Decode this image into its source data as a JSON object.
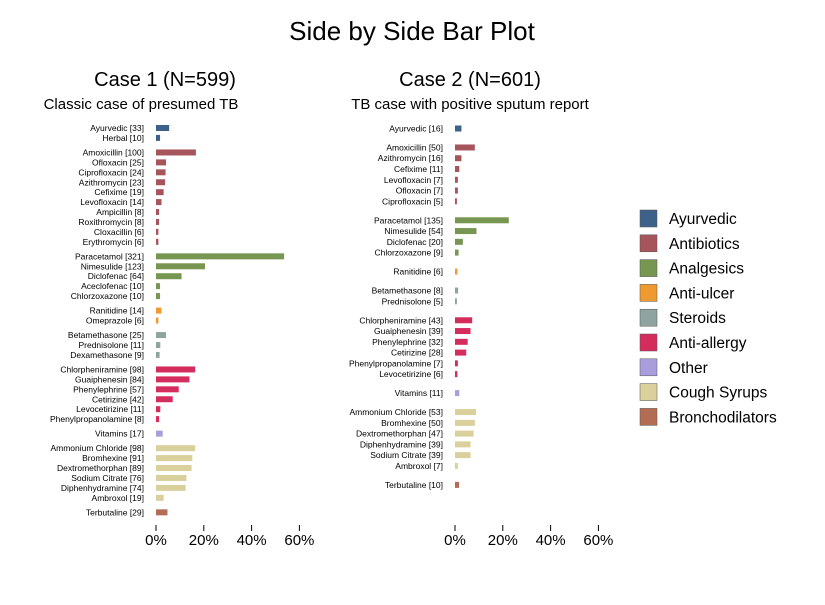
{
  "chart_data": {
    "type": "bar",
    "title": "Side by Side Bar Plot",
    "x_ticks": [
      "0%",
      "20%",
      "40%",
      "60%"
    ],
    "xlim": [
      0,
      60
    ],
    "grid": false,
    "legend_position": "right",
    "legend": [
      {
        "name": "Ayurvedic",
        "color": "#3e6189"
      },
      {
        "name": "Antibiotics",
        "color": "#a5555b"
      },
      {
        "name": "Analgesics",
        "color": "#779651"
      },
      {
        "name": "Anti-ulcer",
        "color": "#ef9a31"
      },
      {
        "name": "Steroids",
        "color": "#8fa4a0"
      },
      {
        "name": "Anti-allergy",
        "color": "#d52c5e"
      },
      {
        "name": "Other",
        "color": "#a99edb"
      },
      {
        "name": "Cough Syrups",
        "color": "#d9d09b"
      },
      {
        "name": "Bronchodilators",
        "color": "#b46d55"
      }
    ],
    "panels": [
      {
        "title": "Case 1 (N=599)",
        "subtitle": "Classic case of presumed TB",
        "n": 599,
        "groups": [
          {
            "group": "Ayurvedic",
            "items": [
              {
                "label": "Ayurvedic [33]",
                "count": 33,
                "percent": 5.5
              },
              {
                "label": "Herbal [10]",
                "count": 10,
                "percent": 1.7
              }
            ]
          },
          {
            "group": "Antibiotics",
            "items": [
              {
                "label": "Amoxicillin [100]",
                "count": 100,
                "percent": 16.7
              },
              {
                "label": "Ofloxacin [25]",
                "count": 25,
                "percent": 4.2
              },
              {
                "label": "Ciprofloxacin [24]",
                "count": 24,
                "percent": 4.0
              },
              {
                "label": "Azithromycin [23]",
                "count": 23,
                "percent": 3.8
              },
              {
                "label": "Cefixime [19]",
                "count": 19,
                "percent": 3.2
              },
              {
                "label": "Levofloxacin [14]",
                "count": 14,
                "percent": 2.3
              },
              {
                "label": "Ampicillin [8]",
                "count": 8,
                "percent": 1.3
              },
              {
                "label": "Roxithromycin [8]",
                "count": 8,
                "percent": 1.3
              },
              {
                "label": "Cloxacillin [6]",
                "count": 6,
                "percent": 1.0
              },
              {
                "label": "Erythromycin [6]",
                "count": 6,
                "percent": 1.0
              }
            ]
          },
          {
            "group": "Analgesics",
            "items": [
              {
                "label": "Paracetamol [321]",
                "count": 321,
                "percent": 53.6
              },
              {
                "label": "Nimesulide [123]",
                "count": 123,
                "percent": 20.5
              },
              {
                "label": "Diclofenac [64]",
                "count": 64,
                "percent": 10.7
              },
              {
                "label": "Aceclofenac [10]",
                "count": 10,
                "percent": 1.7
              },
              {
                "label": "Chlorzoxazone [10]",
                "count": 10,
                "percent": 1.7
              }
            ]
          },
          {
            "group": "Anti-ulcer",
            "items": [
              {
                "label": "Ranitidine [14]",
                "count": 14,
                "percent": 2.3
              },
              {
                "label": "Omeprazole [6]",
                "count": 6,
                "percent": 1.0
              }
            ]
          },
          {
            "group": "Steroids",
            "items": [
              {
                "label": "Betamethasone [25]",
                "count": 25,
                "percent": 4.2
              },
              {
                "label": "Prednisolone [11]",
                "count": 11,
                "percent": 1.8
              },
              {
                "label": "Dexamethasone [9]",
                "count": 9,
                "percent": 1.5
              }
            ]
          },
          {
            "group": "Anti-allergy",
            "items": [
              {
                "label": "Chlorpheniramine [98]",
                "count": 98,
                "percent": 16.4
              },
              {
                "label": "Guaiphenesin [84]",
                "count": 84,
                "percent": 14.0
              },
              {
                "label": "Phenylephrine [57]",
                "count": 57,
                "percent": 9.5
              },
              {
                "label": "Cetirizine [42]",
                "count": 42,
                "percent": 7.0
              },
              {
                "label": "Levocetirizine [11]",
                "count": 11,
                "percent": 1.8
              },
              {
                "label": "Phenylpropanolamine [8]",
                "count": 8,
                "percent": 1.3
              }
            ]
          },
          {
            "group": "Other",
            "items": [
              {
                "label": "Vitamins [17]",
                "count": 17,
                "percent": 2.8
              }
            ]
          },
          {
            "group": "Cough Syrups",
            "items": [
              {
                "label": "Ammonium Chloride [98]",
                "count": 98,
                "percent": 16.4
              },
              {
                "label": "Bromhexine [91]",
                "count": 91,
                "percent": 15.2
              },
              {
                "label": "Dextromethorphan [89]",
                "count": 89,
                "percent": 14.9
              },
              {
                "label": "Sodium Citrate [76]",
                "count": 76,
                "percent": 12.7
              },
              {
                "label": "Diphenhydramine [74]",
                "count": 74,
                "percent": 12.4
              },
              {
                "label": "Ambroxol [19]",
                "count": 19,
                "percent": 3.2
              }
            ]
          },
          {
            "group": "Bronchodilators",
            "items": [
              {
                "label": "Terbutaline [29]",
                "count": 29,
                "percent": 4.8
              }
            ]
          }
        ]
      },
      {
        "title": "Case 2 (N=601)",
        "subtitle": "TB case with positive sputum report",
        "n": 601,
        "groups": [
          {
            "group": "Ayurvedic",
            "items": [
              {
                "label": "Ayurvedic [16]",
                "count": 16,
                "percent": 2.7
              }
            ]
          },
          {
            "group": "Antibiotics",
            "items": [
              {
                "label": "Amoxicillin [50]",
                "count": 50,
                "percent": 8.3
              },
              {
                "label": "Azithromycin [16]",
                "count": 16,
                "percent": 2.7
              },
              {
                "label": "Cefixime [11]",
                "count": 11,
                "percent": 1.8
              },
              {
                "label": "Levofloxacin [7]",
                "count": 7,
                "percent": 1.2
              },
              {
                "label": "Ofloxacin [7]",
                "count": 7,
                "percent": 1.2
              },
              {
                "label": "Ciprofloxacin [5]",
                "count": 5,
                "percent": 0.8
              }
            ]
          },
          {
            "group": "Analgesics",
            "items": [
              {
                "label": "Paracetamol [135]",
                "count": 135,
                "percent": 22.5
              },
              {
                "label": "Nimesulide [54]",
                "count": 54,
                "percent": 9.0
              },
              {
                "label": "Diclofenac [20]",
                "count": 20,
                "percent": 3.3
              },
              {
                "label": "Chlorzoxazone [9]",
                "count": 9,
                "percent": 1.5
              }
            ]
          },
          {
            "group": "Anti-ulcer",
            "items": [
              {
                "label": "Ranitidine [6]",
                "count": 6,
                "percent": 1.0
              }
            ]
          },
          {
            "group": "Steroids",
            "items": [
              {
                "label": "Betamethasone [8]",
                "count": 8,
                "percent": 1.3
              },
              {
                "label": "Prednisolone [5]",
                "count": 5,
                "percent": 0.8
              }
            ]
          },
          {
            "group": "Anti-allergy",
            "items": [
              {
                "label": "Chlorpheniramine [43]",
                "count": 43,
                "percent": 7.2
              },
              {
                "label": "Guaiphenesin [39]",
                "count": 39,
                "percent": 6.5
              },
              {
                "label": "Phenylephrine [32]",
                "count": 32,
                "percent": 5.3
              },
              {
                "label": "Cetirizine [28]",
                "count": 28,
                "percent": 4.7
              },
              {
                "label": "Phenylpropanolamine [7]",
                "count": 7,
                "percent": 1.2
              },
              {
                "label": "Levocetirizine [6]",
                "count": 6,
                "percent": 1.0
              }
            ]
          },
          {
            "group": "Other",
            "items": [
              {
                "label": "Vitamins [11]",
                "count": 11,
                "percent": 1.8
              }
            ]
          },
          {
            "group": "Cough Syrups",
            "items": [
              {
                "label": "Ammonium Chloride [53]",
                "count": 53,
                "percent": 8.8
              },
              {
                "label": "Bromhexine [50]",
                "count": 50,
                "percent": 8.3
              },
              {
                "label": "Dextromethorphan [47]",
                "count": 47,
                "percent": 7.8
              },
              {
                "label": "Diphenhydramine [39]",
                "count": 39,
                "percent": 6.5
              },
              {
                "label": "Sodium Citrate [39]",
                "count": 39,
                "percent": 6.5
              },
              {
                "label": "Ambroxol [7]",
                "count": 7,
                "percent": 1.2
              }
            ]
          },
          {
            "group": "Bronchodilators",
            "items": [
              {
                "label": "Terbutaline [10]",
                "count": 10,
                "percent": 1.7
              }
            ]
          }
        ]
      }
    ]
  }
}
